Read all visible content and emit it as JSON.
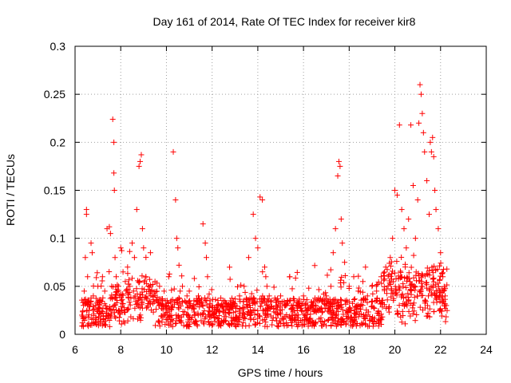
{
  "chart_data": {
    "type": "scatter",
    "title": "Day 161 of 2014, Rate Of TEC Index for receiver kir8",
    "xlabel": "GPS time / hours",
    "ylabel": "ROTI / TECUs",
    "xlim": [
      6,
      24
    ],
    "ylim": [
      0,
      0.3
    ],
    "xticks": [
      6,
      8,
      10,
      12,
      14,
      16,
      18,
      20,
      22,
      24
    ],
    "yticks": [
      0,
      0.05,
      0.1,
      0.15,
      0.2,
      0.25,
      0.3
    ],
    "ytick_labels": [
      "0",
      "0.05",
      "0.1",
      "0.15",
      "0.2",
      "0.25",
      "0.3"
    ],
    "grid": true,
    "marker": "+",
    "marker_color": "#ff0000",
    "series": [
      {
        "name": "ROTI",
        "x": [
          6.3,
          6.4,
          6.45,
          6.5,
          6.5,
          6.55,
          6.6,
          6.7,
          6.75,
          6.8,
          6.9,
          7.0,
          7.1,
          7.2,
          7.3,
          7.4,
          7.5,
          7.55,
          7.6,
          7.65,
          7.7,
          7.7,
          7.72,
          7.75,
          7.8,
          7.9,
          8.0,
          8.1,
          8.2,
          8.3,
          8.4,
          8.5,
          8.6,
          8.7,
          8.8,
          8.85,
          8.9,
          8.95,
          9.0,
          9.1,
          9.2,
          9.3,
          9.4,
          9.5,
          9.6,
          9.7,
          9.8,
          9.9,
          10.0,
          10.1,
          10.2,
          10.3,
          10.4,
          10.45,
          10.5,
          10.55,
          10.6,
          10.7,
          10.8,
          10.9,
          11.0,
          11.2,
          11.4,
          11.6,
          11.7,
          11.75,
          11.8,
          11.9,
          12.0,
          12.2,
          12.4,
          12.6,
          12.8,
          13.0,
          13.2,
          13.4,
          13.6,
          13.8,
          13.9,
          14.0,
          14.1,
          14.2,
          14.3,
          14.35,
          14.4,
          14.5,
          14.6,
          14.8,
          15.0,
          15.2,
          15.4,
          15.6,
          15.8,
          16.0,
          16.2,
          16.4,
          16.6,
          16.8,
          17.0,
          17.2,
          17.3,
          17.4,
          17.5,
          17.55,
          17.6,
          17.65,
          17.7,
          17.8,
          18.0,
          18.2,
          18.4,
          18.6,
          18.8,
          19.0,
          19.2,
          19.4,
          19.6,
          19.8,
          19.9,
          20.0,
          20.1,
          20.2,
          20.3,
          20.4,
          20.5,
          20.6,
          20.7,
          20.8,
          20.9,
          21.0,
          21.05,
          21.1,
          21.15,
          21.2,
          21.25,
          21.3,
          21.4,
          21.5,
          21.55,
          21.6,
          21.65,
          21.7,
          21.75,
          21.8,
          21.9,
          22.0,
          22.1,
          22.2,
          22.25
        ],
        "values": [
          0.02,
          0.045,
          0.08,
          0.125,
          0.13,
          0.06,
          0.03,
          0.095,
          0.085,
          0.04,
          0.03,
          0.05,
          0.035,
          0.06,
          0.045,
          0.11,
          0.112,
          0.105,
          0.05,
          0.224,
          0.2,
          0.168,
          0.15,
          0.08,
          0.06,
          0.05,
          0.09,
          0.065,
          0.055,
          0.07,
          0.05,
          0.095,
          0.08,
          0.13,
          0.175,
          0.18,
          0.187,
          0.11,
          0.09,
          0.06,
          0.05,
          0.085,
          0.04,
          0.055,
          0.035,
          0.05,
          0.03,
          0.045,
          0.03,
          0.06,
          0.035,
          0.19,
          0.14,
          0.1,
          0.09,
          0.072,
          0.045,
          0.05,
          0.035,
          0.04,
          0.045,
          0.03,
          0.04,
          0.115,
          0.095,
          0.08,
          0.06,
          0.035,
          0.03,
          0.025,
          0.03,
          0.025,
          0.035,
          0.03,
          0.04,
          0.05,
          0.08,
          0.125,
          0.1,
          0.09,
          0.143,
          0.14,
          0.07,
          0.06,
          0.05,
          0.04,
          0.035,
          0.03,
          0.04,
          0.03,
          0.06,
          0.035,
          0.03,
          0.04,
          0.025,
          0.03,
          0.035,
          0.035,
          0.04,
          0.05,
          0.085,
          0.11,
          0.165,
          0.18,
          0.175,
          0.12,
          0.095,
          0.075,
          0.05,
          0.06,
          0.045,
          0.055,
          0.04,
          0.05,
          0.045,
          0.06,
          0.07,
          0.08,
          0.1,
          0.15,
          0.145,
          0.218,
          0.13,
          0.11,
          0.09,
          0.12,
          0.218,
          0.155,
          0.1,
          0.14,
          0.22,
          0.26,
          0.25,
          0.23,
          0.21,
          0.19,
          0.16,
          0.125,
          0.2,
          0.19,
          0.205,
          0.185,
          0.15,
          0.13,
          0.11,
          0.085,
          0.06,
          0.04,
          0.03
        ]
      }
    ]
  }
}
